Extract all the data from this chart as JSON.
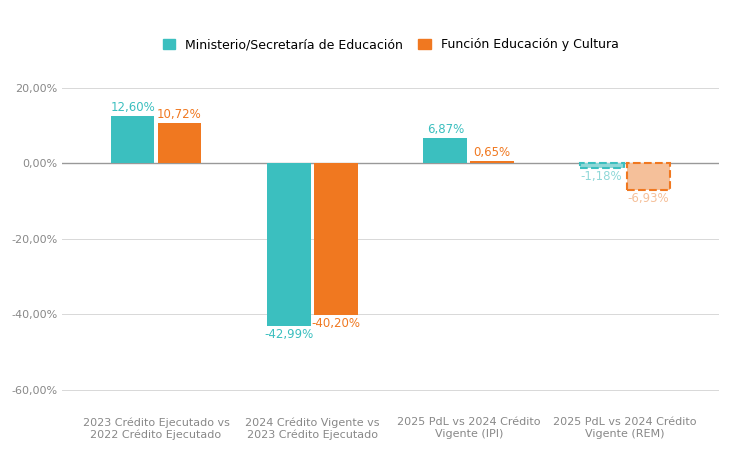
{
  "categories": [
    "2023 Crédito Ejecutado vs\n2022 Crédito Ejecutado",
    "2024 Crédito Vigente vs\n2023 Crédito Ejecutado",
    "2025 PdL vs 2024 Crédito\nVigente (IPI)",
    "2025 PdL vs 2024 Crédito\nVigente (REM)"
  ],
  "ministerio_values": [
    12.6,
    -42.99,
    6.87,
    -1.18
  ],
  "funcion_values": [
    10.72,
    -40.2,
    0.65,
    -6.93
  ],
  "ministerio_color": "#3BBFBF",
  "funcion_color": "#F07820",
  "ministerio_color_light": "#90D8D8",
  "funcion_color_light": "#F5C09A",
  "ministerio_label": "Ministerio/Secretaría de Educación",
  "funcion_label": "Función Educación y Cultura",
  "ylim": [
    -65,
    25
  ],
  "yticks": [
    20,
    0,
    -20,
    -40,
    -60
  ],
  "background_color": "#ffffff",
  "grid_color": "#d8d8d8",
  "zero_line_color": "#999999",
  "tick_color": "#888888",
  "bar_width": 0.28,
  "label_fontsize": 8.0,
  "value_fontsize": 8.5,
  "legend_fontsize": 9.0
}
